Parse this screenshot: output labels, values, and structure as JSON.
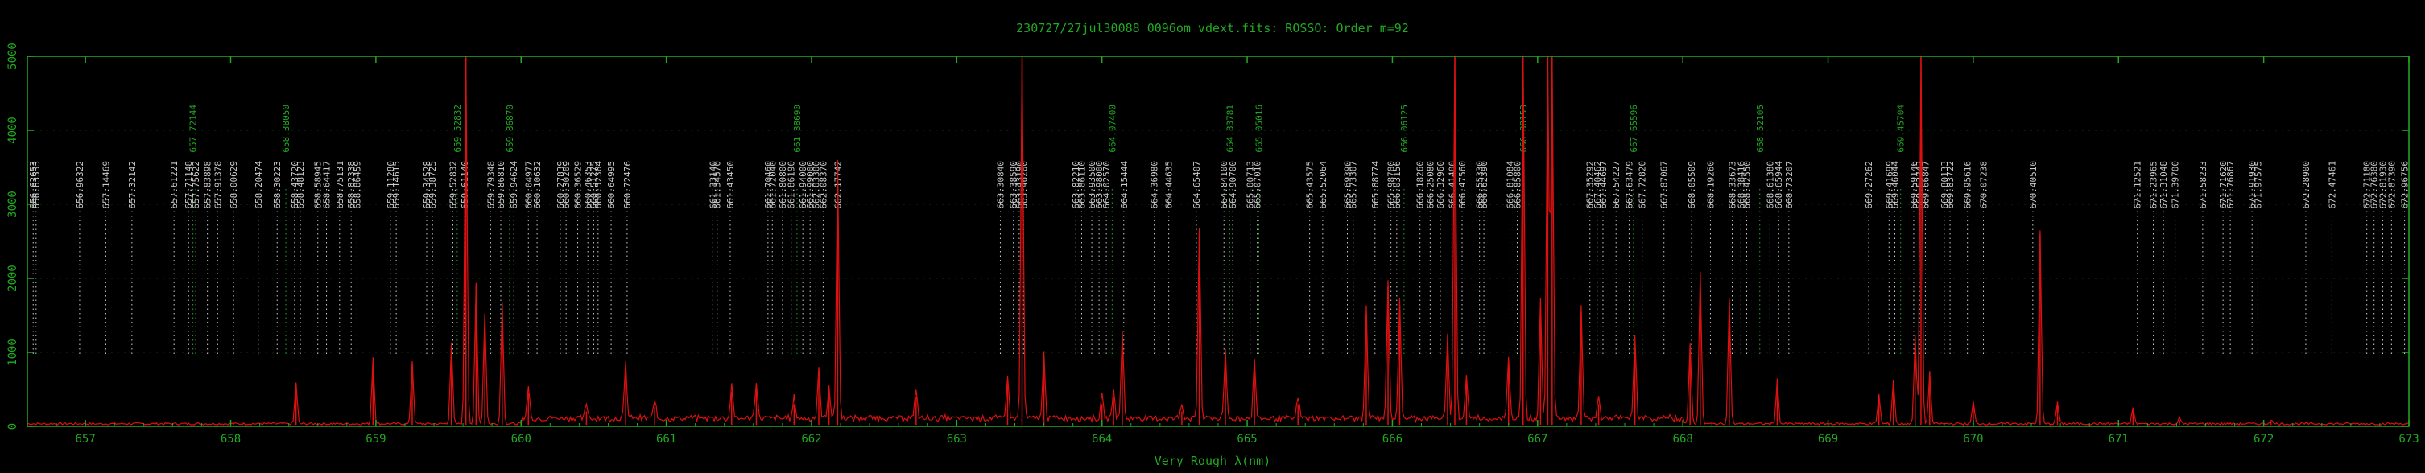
{
  "chart_data": {
    "type": "line",
    "title": "230727/27jul30088_0096om_vdext.fits: ROSSO: Order m=92",
    "xlabel": "Very Rough λ(nm)",
    "ylabel": "",
    "xlim": [
      656.6,
      673.0
    ],
    "ylim": [
      0,
      5000
    ],
    "x_ticks": [
      657,
      658,
      659,
      660,
      661,
      662,
      663,
      664,
      665,
      666,
      667,
      668,
      669,
      670,
      671,
      672,
      673
    ],
    "y_ticks": [
      0,
      1000,
      2000,
      3000,
      4000,
      5000
    ],
    "colors": {
      "spectrum": "#dd1111",
      "axes": "#22aa22",
      "line_marker": "#cccccc",
      "line_marker_alt": "#22aa22"
    },
    "spectrum_baseline": 20,
    "spectrum": [
      {
        "x": 658.45,
        "y": 560
      },
      {
        "x": 658.98,
        "y": 900
      },
      {
        "x": 659.25,
        "y": 850
      },
      {
        "x": 659.52,
        "y": 1100
      },
      {
        "x": 659.62,
        "y": 5000
      },
      {
        "x": 659.69,
        "y": 1900
      },
      {
        "x": 659.75,
        "y": 1500
      },
      {
        "x": 659.87,
        "y": 1650
      },
      {
        "x": 660.05,
        "y": 450
      },
      {
        "x": 660.45,
        "y": 200
      },
      {
        "x": 660.72,
        "y": 750
      },
      {
        "x": 660.92,
        "y": 260
      },
      {
        "x": 661.45,
        "y": 470
      },
      {
        "x": 661.62,
        "y": 500
      },
      {
        "x": 661.88,
        "y": 300
      },
      {
        "x": 662.05,
        "y": 650
      },
      {
        "x": 662.12,
        "y": 450
      },
      {
        "x": 662.18,
        "y": 3500
      },
      {
        "x": 662.72,
        "y": 400
      },
      {
        "x": 663.35,
        "y": 600
      },
      {
        "x": 663.45,
        "y": 5000
      },
      {
        "x": 663.6,
        "y": 900
      },
      {
        "x": 664.0,
        "y": 300
      },
      {
        "x": 664.08,
        "y": 400
      },
      {
        "x": 664.14,
        "y": 1200
      },
      {
        "x": 664.55,
        "y": 200
      },
      {
        "x": 664.67,
        "y": 2600
      },
      {
        "x": 664.85,
        "y": 900
      },
      {
        "x": 665.05,
        "y": 800
      },
      {
        "x": 665.35,
        "y": 300
      },
      {
        "x": 665.82,
        "y": 1500
      },
      {
        "x": 665.97,
        "y": 1900
      },
      {
        "x": 666.05,
        "y": 1600
      },
      {
        "x": 666.38,
        "y": 1100
      },
      {
        "x": 666.43,
        "y": 5000
      },
      {
        "x": 666.51,
        "y": 600
      },
      {
        "x": 666.8,
        "y": 800
      },
      {
        "x": 666.9,
        "y": 5000
      },
      {
        "x": 667.02,
        "y": 1600
      },
      {
        "x": 667.07,
        "y": 5000
      },
      {
        "x": 667.1,
        "y": 5000
      },
      {
        "x": 667.3,
        "y": 1500
      },
      {
        "x": 667.42,
        "y": 300
      },
      {
        "x": 667.67,
        "y": 1150
      },
      {
        "x": 668.05,
        "y": 1100
      },
      {
        "x": 668.12,
        "y": 2050
      },
      {
        "x": 668.32,
        "y": 1700
      },
      {
        "x": 668.65,
        "y": 600
      },
      {
        "x": 669.35,
        "y": 400
      },
      {
        "x": 669.45,
        "y": 600
      },
      {
        "x": 669.6,
        "y": 1200
      },
      {
        "x": 669.64,
        "y": 5000
      },
      {
        "x": 669.7,
        "y": 700
      },
      {
        "x": 670.0,
        "y": 300
      },
      {
        "x": 670.46,
        "y": 2600
      },
      {
        "x": 670.58,
        "y": 300
      },
      {
        "x": 671.1,
        "y": 220
      },
      {
        "x": 671.42,
        "y": 80
      },
      {
        "x": 672.05,
        "y": 60
      }
    ],
    "lines": [
      {
        "x": 656.64,
        "label": "656.62653"
      },
      {
        "x": 656.66,
        "label": "656.63533"
      },
      {
        "x": 656.96,
        "label": "656.96322"
      },
      {
        "x": 657.14,
        "label": "657.14469"
      },
      {
        "x": 657.32,
        "label": "657.32142"
      },
      {
        "x": 657.61,
        "label": "657.61221"
      },
      {
        "x": 657.71,
        "label": "657.71148"
      },
      {
        "x": 657.74,
        "label": "657.72144",
        "alt": true
      },
      {
        "x": 657.76,
        "label": "657.75622"
      },
      {
        "x": 657.84,
        "label": "657.83898"
      },
      {
        "x": 657.91,
        "label": "657.91378"
      },
      {
        "x": 658.02,
        "label": "658.00629"
      },
      {
        "x": 658.19,
        "label": "658.20474"
      },
      {
        "x": 658.32,
        "label": "658.30223"
      },
      {
        "x": 658.38,
        "label": "658.38050",
        "alt": true
      },
      {
        "x": 658.44,
        "label": "658.43720"
      },
      {
        "x": 658.48,
        "label": "658.48123"
      },
      {
        "x": 658.6,
        "label": "658.58945"
      },
      {
        "x": 658.66,
        "label": "658.64417"
      },
      {
        "x": 658.75,
        "label": "658.75131"
      },
      {
        "x": 658.83,
        "label": "658.82338"
      },
      {
        "x": 658.87,
        "label": "658.86459"
      },
      {
        "x": 659.1,
        "label": "659.11280"
      },
      {
        "x": 659.14,
        "label": "659.14615"
      },
      {
        "x": 659.35,
        "label": "659.34528"
      },
      {
        "x": 659.39,
        "label": "659.38725"
      },
      {
        "x": 659.53,
        "label": "659.52832"
      },
      {
        "x": 659.56,
        "label": "659.52832",
        "alt": true
      },
      {
        "x": 659.61,
        "label": "659.61140"
      },
      {
        "x": 659.79,
        "label": "659.79348"
      },
      {
        "x": 659.86,
        "label": "659.86810"
      },
      {
        "x": 659.92,
        "label": "659.86870",
        "alt": true
      },
      {
        "x": 659.95,
        "label": "659.94624"
      },
      {
        "x": 660.05,
        "label": "660.04977"
      },
      {
        "x": 660.11,
        "label": "660.10632"
      },
      {
        "x": 660.27,
        "label": "660.27839"
      },
      {
        "x": 660.31,
        "label": "660.30209"
      },
      {
        "x": 660.39,
        "label": "660.36529"
      },
      {
        "x": 660.46,
        "label": "660.46353"
      },
      {
        "x": 660.5,
        "label": "660.51275"
      },
      {
        "x": 660.53,
        "label": "660.52384"
      },
      {
        "x": 660.62,
        "label": "660.64995"
      },
      {
        "x": 660.73,
        "label": "660.72476"
      },
      {
        "x": 661.32,
        "label": "661.33140"
      },
      {
        "x": 661.35,
        "label": "661.34570"
      },
      {
        "x": 661.44,
        "label": "661.43450"
      },
      {
        "x": 661.7,
        "label": "661.70460"
      },
      {
        "x": 661.73,
        "label": "661.72040"
      },
      {
        "x": 661.8,
        "label": "661.80800"
      },
      {
        "x": 661.86,
        "label": "661.86190"
      },
      {
        "x": 661.9,
        "label": "661.88690",
        "alt": true
      },
      {
        "x": 661.94,
        "label": "661.94000"
      },
      {
        "x": 661.99,
        "label": "661.99000"
      },
      {
        "x": 662.03,
        "label": "662.03300"
      },
      {
        "x": 662.08,
        "label": "662.08370"
      },
      {
        "x": 662.18,
        "label": "662.17742"
      },
      {
        "x": 663.3,
        "label": "663.30840"
      },
      {
        "x": 663.39,
        "label": "663.38590"
      },
      {
        "x": 663.43,
        "label": "663.43190"
      },
      {
        "x": 663.46,
        "label": "663.46200"
      },
      {
        "x": 663.82,
        "label": "663.82210"
      },
      {
        "x": 663.86,
        "label": "663.86110"
      },
      {
        "x": 663.93,
        "label": "663.93500"
      },
      {
        "x": 663.98,
        "label": "663.98000"
      },
      {
        "x": 664.03,
        "label": "664.02570"
      },
      {
        "x": 664.07,
        "label": "664.07400",
        "alt": true
      },
      {
        "x": 664.15,
        "label": "664.15444"
      },
      {
        "x": 664.36,
        "label": "664.36980"
      },
      {
        "x": 664.46,
        "label": "664.44635"
      },
      {
        "x": 664.65,
        "label": "664.65407"
      },
      {
        "x": 664.84,
        "label": "664.84100"
      },
      {
        "x": 664.88,
        "label": "664.83781",
        "alt": true
      },
      {
        "x": 664.9,
        "label": "664.90700"
      },
      {
        "x": 665.02,
        "label": "665.00713"
      },
      {
        "x": 665.07,
        "label": "665.07010"
      },
      {
        "x": 665.08,
        "label": "665.05016",
        "alt": true
      },
      {
        "x": 665.43,
        "label": "665.43575"
      },
      {
        "x": 665.52,
        "label": "665.52064"
      },
      {
        "x": 665.69,
        "label": "665.69390"
      },
      {
        "x": 665.73,
        "label": "665.73307"
      },
      {
        "x": 665.88,
        "label": "665.88774"
      },
      {
        "x": 665.99,
        "label": "665.98780"
      },
      {
        "x": 666.03,
        "label": "666.03156"
      },
      {
        "x": 666.08,
        "label": "666.06125",
        "alt": true
      },
      {
        "x": 666.19,
        "label": "666.18260"
      },
      {
        "x": 666.26,
        "label": "666.25080"
      },
      {
        "x": 666.33,
        "label": "666.32960"
      },
      {
        "x": 666.41,
        "label": "666.41400"
      },
      {
        "x": 666.48,
        "label": "666.47560"
      },
      {
        "x": 666.6,
        "label": "666.55330"
      },
      {
        "x": 666.63,
        "label": "666.62390"
      },
      {
        "x": 666.81,
        "label": "666.81084"
      },
      {
        "x": 666.86,
        "label": "666.85800"
      },
      {
        "x": 666.9,
        "label": "666.88153",
        "alt": true
      },
      {
        "x": 667.36,
        "label": "667.35292"
      },
      {
        "x": 667.41,
        "label": "667.40462"
      },
      {
        "x": 667.45,
        "label": "667.44697"
      },
      {
        "x": 667.54,
        "label": "667.54227"
      },
      {
        "x": 667.63,
        "label": "667.63479"
      },
      {
        "x": 667.66,
        "label": "667.65596",
        "alt": true
      },
      {
        "x": 667.72,
        "label": "667.72820"
      },
      {
        "x": 667.87,
        "label": "667.87067"
      },
      {
        "x": 668.06,
        "label": "668.05509"
      },
      {
        "x": 668.19,
        "label": "668.19260"
      },
      {
        "x": 668.34,
        "label": "668.33673"
      },
      {
        "x": 668.4,
        "label": "668.38416"
      },
      {
        "x": 668.44,
        "label": "668.42550"
      },
      {
        "x": 668.53,
        "label": "668.52105",
        "alt": true
      },
      {
        "x": 668.6,
        "label": "668.61380"
      },
      {
        "x": 668.66,
        "label": "668.65944"
      },
      {
        "x": 668.73,
        "label": "668.73207"
      },
      {
        "x": 669.28,
        "label": "669.27262"
      },
      {
        "x": 669.42,
        "label": "669.41699"
      },
      {
        "x": 669.46,
        "label": "669.46044"
      },
      {
        "x": 669.5,
        "label": "669.45704",
        "alt": true
      },
      {
        "x": 669.59,
        "label": "669.59146"
      },
      {
        "x": 669.63,
        "label": "669.63243"
      },
      {
        "x": 669.67,
        "label": "669.66847"
      },
      {
        "x": 669.8,
        "label": "669.80133"
      },
      {
        "x": 669.84,
        "label": "669.83722"
      },
      {
        "x": 669.96,
        "label": "669.95616"
      },
      {
        "x": 670.07,
        "label": "670.07238"
      },
      {
        "x": 670.41,
        "label": "670.40510"
      },
      {
        "x": 671.13,
        "label": "671.12521"
      },
      {
        "x": 671.24,
        "label": "671.23965"
      },
      {
        "x": 671.31,
        "label": "671.31048"
      },
      {
        "x": 671.39,
        "label": "671.39700"
      },
      {
        "x": 671.58,
        "label": "671.58233"
      },
      {
        "x": 671.72,
        "label": "671.71620"
      },
      {
        "x": 671.77,
        "label": "671.76867"
      },
      {
        "x": 671.92,
        "label": "671.91930"
      },
      {
        "x": 671.96,
        "label": "671.97575"
      },
      {
        "x": 672.29,
        "label": "672.28900"
      },
      {
        "x": 672.47,
        "label": "672.47461"
      },
      {
        "x": 672.71,
        "label": "672.71180"
      },
      {
        "x": 672.76,
        "label": "672.76380"
      },
      {
        "x": 672.82,
        "label": "672.81930"
      },
      {
        "x": 672.88,
        "label": "672.87390"
      },
      {
        "x": 672.97,
        "label": "672.96756"
      }
    ]
  }
}
